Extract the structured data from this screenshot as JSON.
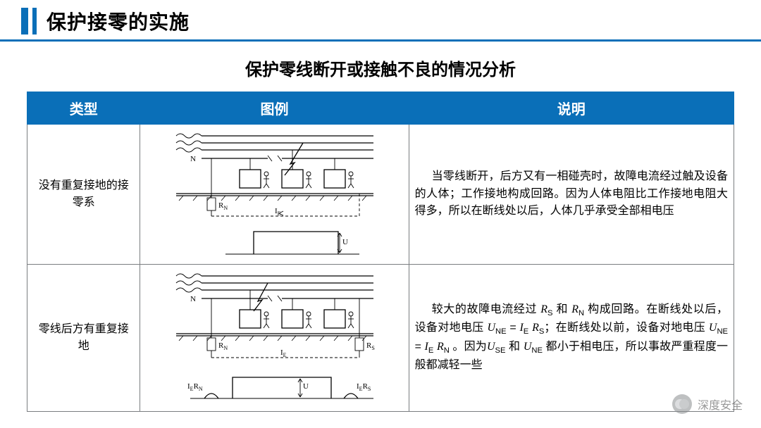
{
  "colors": {
    "accent": "#0a6fb8",
    "border": "#7a7d80",
    "text": "#000000",
    "bg": "#ffffff"
  },
  "header": {
    "title": "保护接零的实施"
  },
  "subtitle": "保护零线断开或接触不良的情况分析",
  "table": {
    "columns": [
      "类型",
      "图例",
      "说明"
    ],
    "column_widths_pct": [
      16,
      38,
      46
    ],
    "header_bg": "#0a6fb8",
    "header_fg": "#ffffff",
    "header_fontsize_pt": 15,
    "cell_fontsize_pt": 12,
    "rows": [
      {
        "type_label": "没有重复接地的接零系",
        "diagram": {
          "kind": "schematic",
          "buses": 3,
          "neutral_label": "N",
          "resistor_label": "R_N",
          "current_label": "I_E",
          "voltage_label": "U",
          "has_repeat_ground": false
        },
        "description_html": "当零线断开，后方又有一相碰壳时，故障电流经过触及设备的人体；工作接地构成回路。因为人体电阻比工作接地电阻大得多，所以在断线处以后，人体几乎承受全部相电压"
      },
      {
        "type_label": "零线后方有重复接地",
        "diagram": {
          "kind": "schematic",
          "buses": 3,
          "neutral_label": "N",
          "resistor_left_label": "R_N",
          "resistor_right_label": "R_S",
          "current_label": "I_E",
          "voltage_label": "U",
          "left_mark": "I_E R_N",
          "right_mark": "I_E R_S",
          "has_repeat_ground": true
        },
        "description_html": "较大的故障电流经过 <i>R</i><sub>S</sub> 和 <i>R</i><sub>N</sub> 构成回路。在断线处以后，设备对地电压 <i>U</i><sub>NE</sub> = <i>I</i><sub>E</sub> <i>R</i><sub>S</sub>；在断线处以前，设备对地电压 <i>U</i><sub>NE</sub> = <i>I</i><sub>E</sub> <i>R</i><sub>N</sub> 。因为<i>U</i><sub>SE</sub> 和 <i>U</i><sub>NE</sub> 都小于相电压，所以事故严重程度一般都减轻一些"
      }
    ]
  },
  "watermark": {
    "text": "深度安全"
  }
}
